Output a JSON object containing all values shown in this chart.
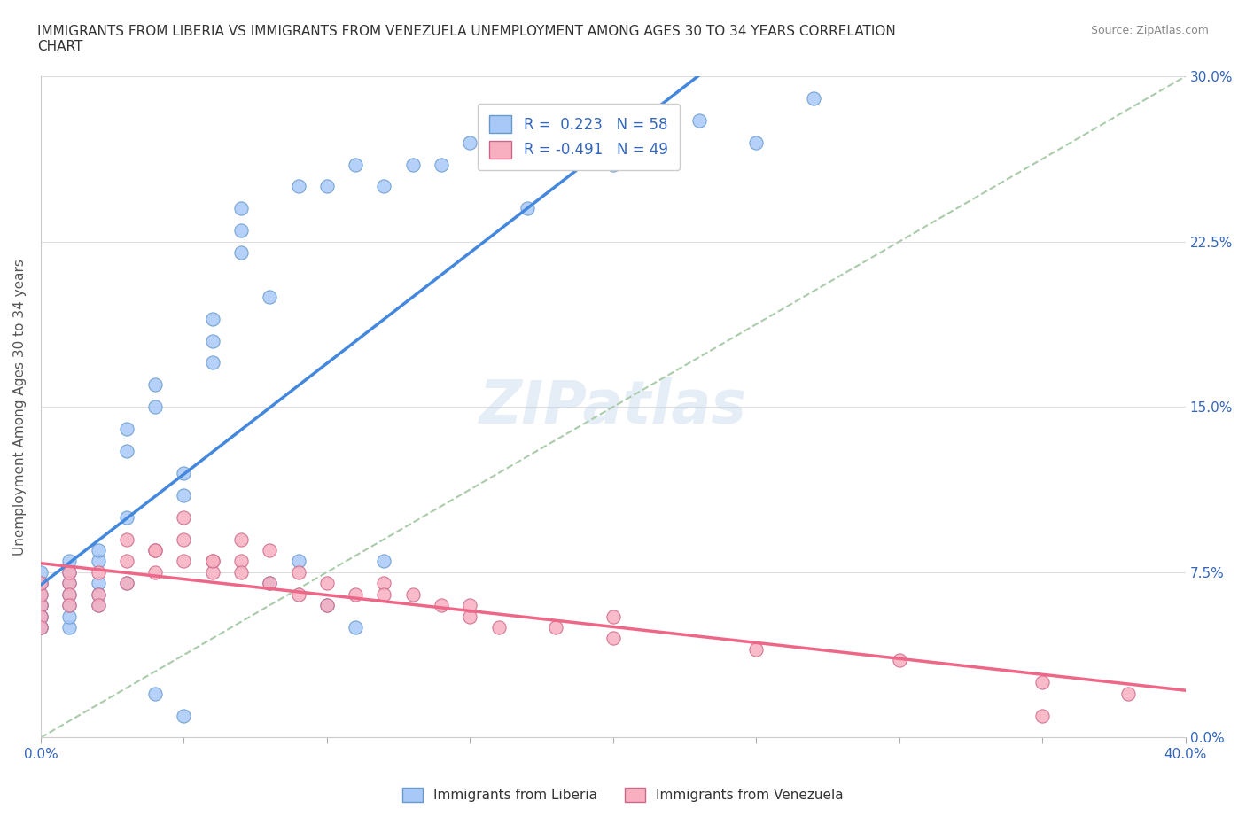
{
  "title": "IMMIGRANTS FROM LIBERIA VS IMMIGRANTS FROM VENEZUELA UNEMPLOYMENT AMONG AGES 30 TO 34 YEARS CORRELATION\nCHART",
  "source_text": "Source: ZipAtlas.com",
  "xlabel": "",
  "ylabel": "Unemployment Among Ages 30 to 34 years",
  "xlim": [
    0.0,
    0.4
  ],
  "ylim": [
    0.0,
    0.3
  ],
  "xticks": [
    0.0,
    0.05,
    0.1,
    0.15,
    0.2,
    0.25,
    0.3,
    0.35,
    0.4
  ],
  "yticks": [
    0.0,
    0.075,
    0.15,
    0.225,
    0.3
  ],
  "ytick_labels": [
    "0.0%",
    "7.5%",
    "15.0%",
    "22.5%",
    "30.0%"
  ],
  "xtick_labels": [
    "0.0%",
    "",
    "",
    "",
    "",
    "",
    "",
    "",
    "40.0%"
  ],
  "liberia_color": "#a8c8f8",
  "liberia_edge": "#6699cc",
  "venezuela_color": "#f8b0c0",
  "venezuela_edge": "#cc6688",
  "liberia_line_color": "#4488dd",
  "venezuela_line_color": "#ee6688",
  "dashed_line_color": "#aaccaa",
  "R_liberia": 0.223,
  "N_liberia": 58,
  "R_venezuela": -0.491,
  "N_venezuela": 49,
  "watermark": "ZIPatlas",
  "legend_label_liberia": "Immigrants from Liberia",
  "legend_label_venezuela": "Immigrants from Venezuela",
  "liberia_x": [
    0.0,
    0.0,
    0.0,
    0.0,
    0.0,
    0.0,
    0.0,
    0.0,
    0.0,
    0.0,
    0.01,
    0.01,
    0.01,
    0.01,
    0.01,
    0.01,
    0.01,
    0.02,
    0.02,
    0.02,
    0.02,
    0.02,
    0.03,
    0.03,
    0.03,
    0.04,
    0.04,
    0.05,
    0.05,
    0.06,
    0.06,
    0.06,
    0.07,
    0.07,
    0.07,
    0.08,
    0.09,
    0.1,
    0.11,
    0.12,
    0.13,
    0.14,
    0.15,
    0.16,
    0.17,
    0.2,
    0.22,
    0.23,
    0.25,
    0.27,
    0.11,
    0.04,
    0.05,
    0.08,
    0.03,
    0.09,
    0.12,
    0.1
  ],
  "liberia_y": [
    0.06,
    0.065,
    0.07,
    0.07,
    0.075,
    0.05,
    0.055,
    0.06,
    0.055,
    0.05,
    0.07,
    0.075,
    0.08,
    0.065,
    0.05,
    0.055,
    0.06,
    0.08,
    0.085,
    0.07,
    0.065,
    0.06,
    0.1,
    0.13,
    0.14,
    0.15,
    0.16,
    0.11,
    0.12,
    0.17,
    0.18,
    0.19,
    0.22,
    0.23,
    0.24,
    0.2,
    0.25,
    0.25,
    0.26,
    0.25,
    0.26,
    0.26,
    0.27,
    0.28,
    0.24,
    0.26,
    0.28,
    0.28,
    0.27,
    0.29,
    0.05,
    0.02,
    0.01,
    0.07,
    0.07,
    0.08,
    0.08,
    0.06
  ],
  "venezuela_x": [
    0.0,
    0.0,
    0.0,
    0.0,
    0.0,
    0.01,
    0.01,
    0.01,
    0.01,
    0.02,
    0.02,
    0.02,
    0.03,
    0.03,
    0.04,
    0.04,
    0.05,
    0.05,
    0.06,
    0.06,
    0.07,
    0.07,
    0.08,
    0.09,
    0.1,
    0.11,
    0.12,
    0.13,
    0.14,
    0.15,
    0.16,
    0.18,
    0.2,
    0.25,
    0.3,
    0.35,
    0.38,
    0.03,
    0.04,
    0.05,
    0.06,
    0.07,
    0.08,
    0.09,
    0.1,
    0.12,
    0.15,
    0.2,
    0.35
  ],
  "venezuela_y": [
    0.06,
    0.065,
    0.07,
    0.055,
    0.05,
    0.07,
    0.075,
    0.065,
    0.06,
    0.075,
    0.065,
    0.06,
    0.08,
    0.07,
    0.085,
    0.075,
    0.09,
    0.08,
    0.08,
    0.075,
    0.09,
    0.08,
    0.085,
    0.075,
    0.07,
    0.065,
    0.07,
    0.065,
    0.06,
    0.055,
    0.05,
    0.05,
    0.045,
    0.04,
    0.035,
    0.025,
    0.02,
    0.09,
    0.085,
    0.1,
    0.08,
    0.075,
    0.07,
    0.065,
    0.06,
    0.065,
    0.06,
    0.055,
    0.01
  ]
}
